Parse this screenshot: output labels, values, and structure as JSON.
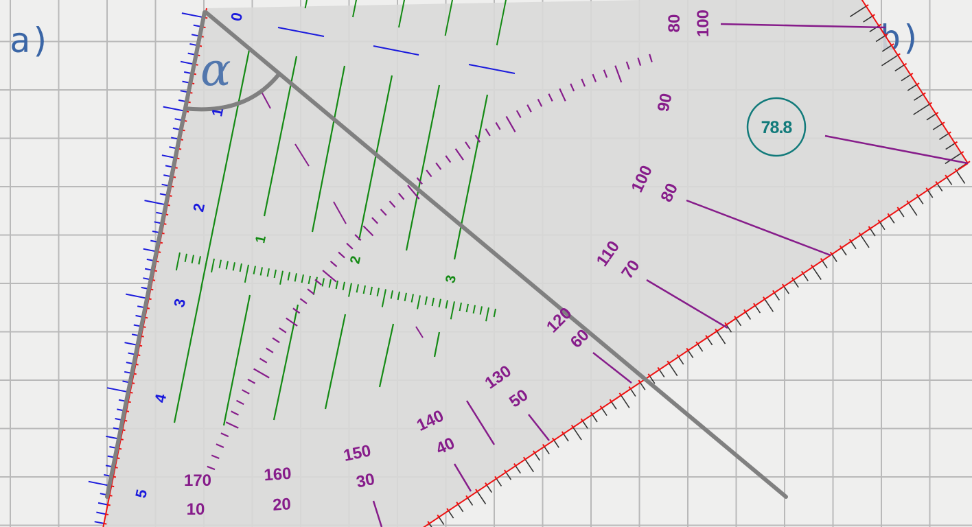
{
  "labels": {
    "a": "a)",
    "b": "b)",
    "angle_symbol": "α"
  },
  "reading": "78.8",
  "ruler_labels": [
    "0",
    "1",
    "2",
    "3",
    "4",
    "5"
  ],
  "grid_labels": [
    "1",
    "2",
    "3"
  ],
  "outer_top_labels": [
    "80",
    "100"
  ],
  "outer_labels": [
    "170",
    "160",
    "150",
    "140",
    "130",
    "120",
    "110",
    "100",
    "90"
  ],
  "inner_labels": [
    "10",
    "20",
    "30",
    "40",
    "50",
    "60",
    "70",
    "80"
  ],
  "colors": {
    "triangle_fill": "#d9d9d8",
    "edge_red": "#ee1111",
    "ruler_blue": "#1a1adc",
    "grid_green": "#148a14",
    "protractor_purple": "#861c8a",
    "readout_teal": "#117a7a",
    "guide_gray": "#808080",
    "label_blue": "#3b66a6"
  }
}
